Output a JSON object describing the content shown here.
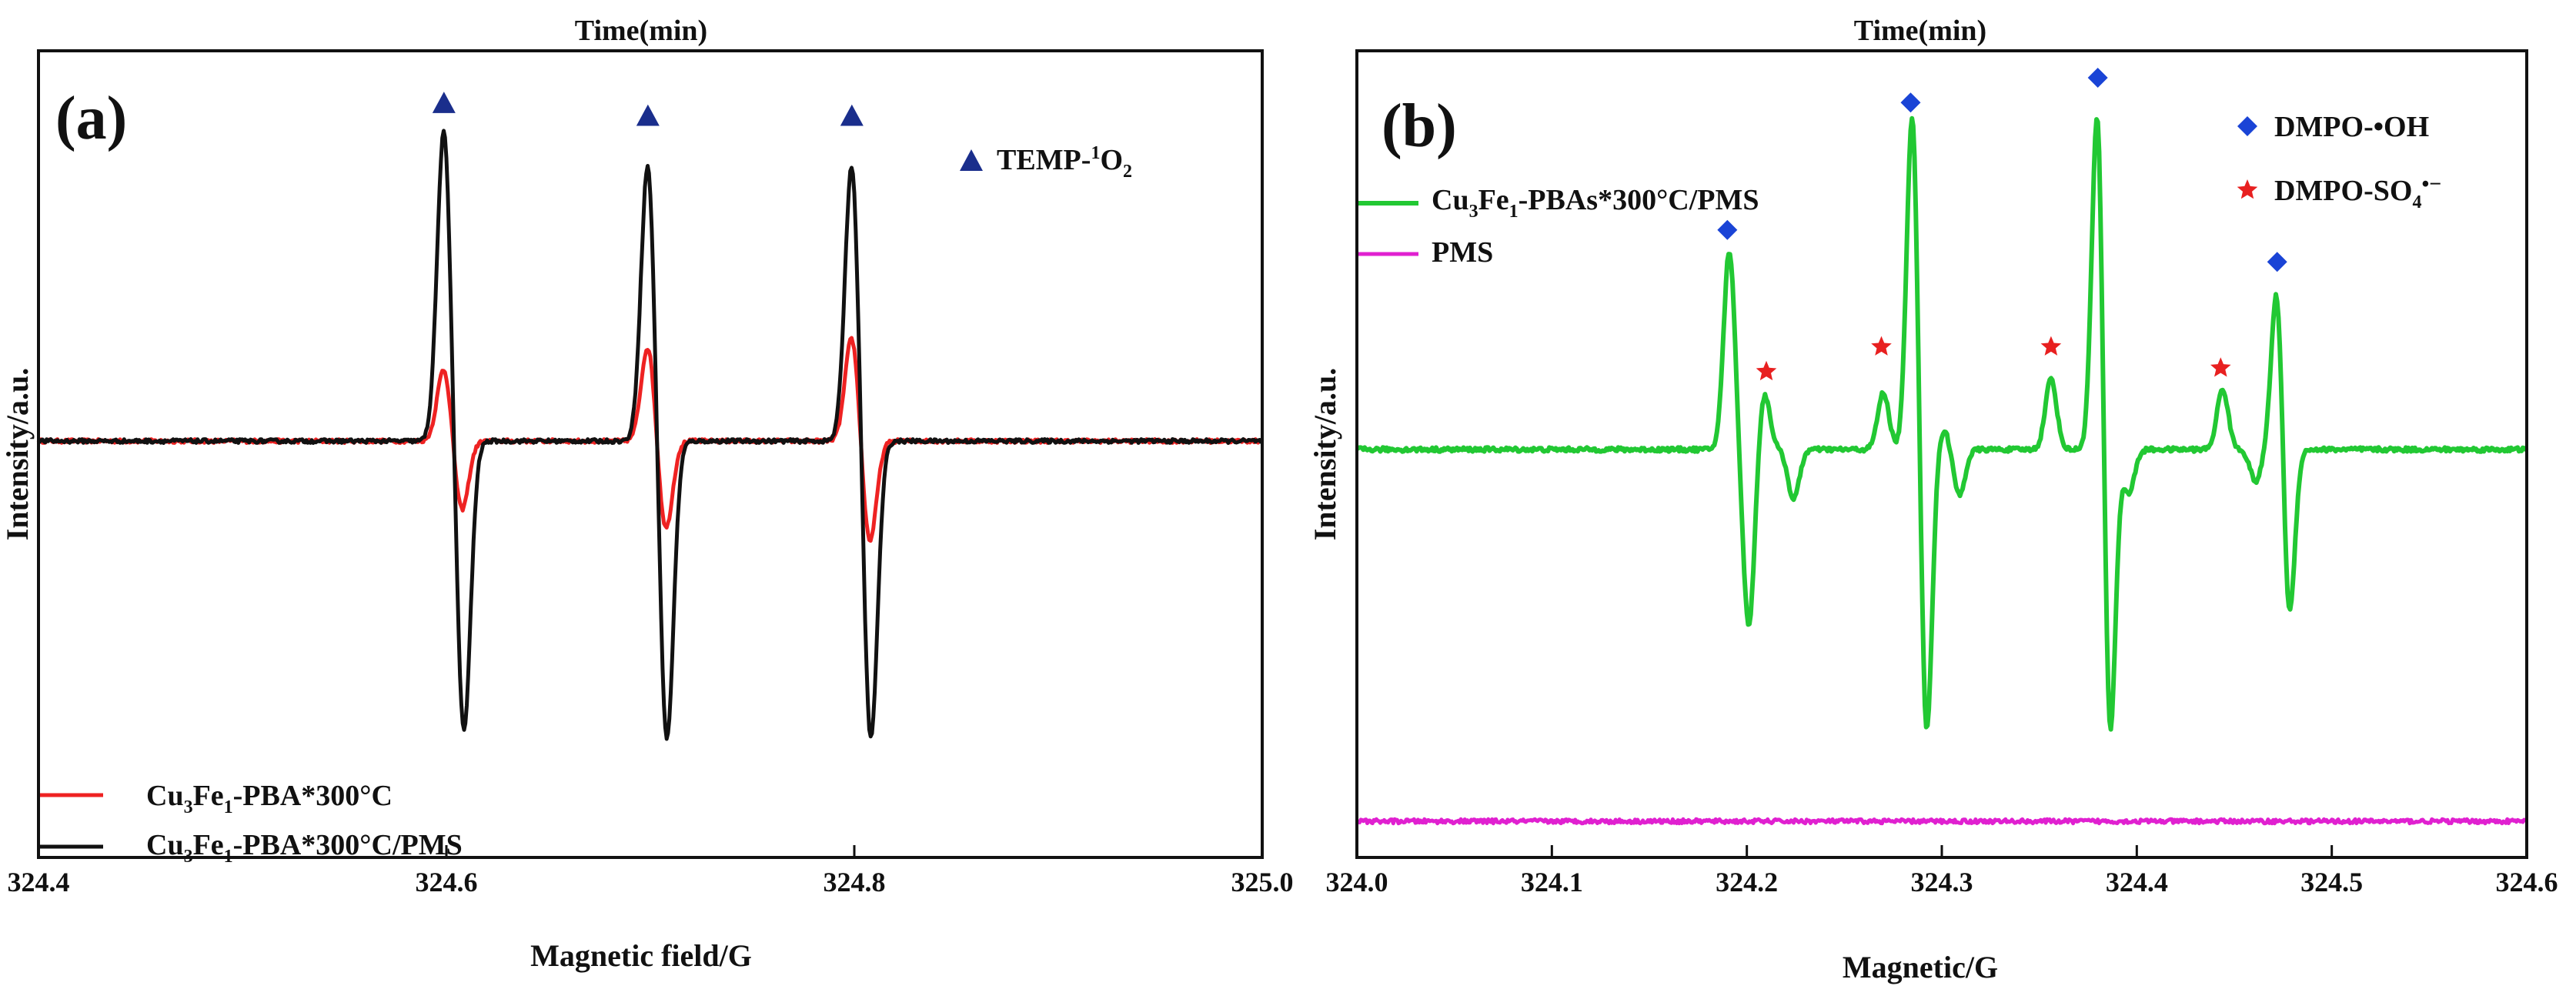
{
  "chart_data": [
    {
      "panel": "(a)",
      "type": "line",
      "top_label": "Time(min)",
      "xlabel": "Magnetic field/G",
      "ylabel": "Intensity/a.u.",
      "xlim": [
        324.4,
        325.0
      ],
      "ylim": [
        -1.0,
        1.0
      ],
      "x_ticks": [
        "324.4",
        "324.6",
        "324.8",
        "325.0"
      ],
      "baseline": 0,
      "series": [
        {
          "name": "Cu3Fe1-PBA*300°C",
          "name_parts": [
            "Cu",
            "3",
            "Fe",
            "1",
            "-PBA*300°C"
          ],
          "color": "#ee2222",
          "peaks": [
            {
              "x": 324.5988,
              "a": 0.23
            },
            {
              "x": 324.6075,
              "a": -0.22
            },
            {
              "x": 324.6988,
              "a": 0.3
            },
            {
              "x": 324.7075,
              "a": -0.28
            },
            {
              "x": 324.7988,
              "a": 0.33
            },
            {
              "x": 324.8075,
              "a": -0.32
            }
          ]
        },
        {
          "name": "Cu3Fe1-PBA*300°C/PMS",
          "name_parts": [
            "Cu",
            "3",
            "Fe",
            "1",
            "-PBA*300°C/PMS"
          ],
          "color": "#111111",
          "peaks": [
            {
              "x": 324.5988,
              "a": 0.98
            },
            {
              "x": 324.6085,
              "a": -0.92
            },
            {
              "x": 324.6988,
              "a": 0.88
            },
            {
              "x": 324.708,
              "a": -0.95
            },
            {
              "x": 324.7988,
              "a": 0.88
            },
            {
              "x": 324.808,
              "a": -0.95
            }
          ]
        }
      ],
      "markers": {
        "symbol": "triangle",
        "color": "#1a2e8c",
        "name": "TEMP-1O2",
        "name_parts": [
          "TEMP-",
          "1",
          "O",
          "2"
        ],
        "positions": [
          {
            "x": 324.5988,
            "y": 1.06
          },
          {
            "x": 324.6988,
            "y": 1.02
          },
          {
            "x": 324.7988,
            "y": 1.02
          }
        ]
      }
    },
    {
      "panel": "(b)",
      "type": "line",
      "top_label": "Time(min)",
      "xlabel": "Magnetic/G",
      "ylabel": "Intensity/a.u.",
      "xlim": [
        324.0,
        324.6
      ],
      "ylim": [
        -1.0,
        1.0
      ],
      "x_ticks": [
        "324.0",
        "324.1",
        "324.2",
        "324.3",
        "324.4",
        "324.5",
        "324.6"
      ],
      "baseline": 0,
      "series": [
        {
          "name": "Cu3Fe1-PBAs*300°C/PMS",
          "name_parts": [
            "Cu",
            "3",
            "Fe",
            "1",
            "-PBAs*300°C/PMS"
          ],
          "color": "#22c833",
          "baseline": 0,
          "peaks": [
            {
              "x": 324.191,
              "a": 0.56
            },
            {
              "x": 324.201,
              "a": -0.5
            },
            {
              "x": 324.209,
              "a": 0.16
            },
            {
              "x": 324.224,
              "a": -0.14
            },
            {
              "x": 324.27,
              "a": 0.16
            },
            {
              "x": 324.285,
              "a": 0.98
            },
            {
              "x": 324.292,
              "a": -0.83
            },
            {
              "x": 324.301,
              "a": 0.06
            },
            {
              "x": 324.309,
              "a": -0.13
            },
            {
              "x": 324.356,
              "a": 0.2
            },
            {
              "x": 324.38,
              "a": 1.02
            },
            {
              "x": 324.386,
              "a": -0.88
            },
            {
              "x": 324.396,
              "a": -0.12
            },
            {
              "x": 324.444,
              "a": 0.17
            },
            {
              "x": 324.461,
              "a": -0.09
            },
            {
              "x": 324.472,
              "a": 0.48
            },
            {
              "x": 324.478,
              "a": -0.5
            }
          ]
        },
        {
          "name": "PMS",
          "name_parts": [
            "PMS"
          ],
          "color": "#e020d0",
          "baseline": -1.05,
          "peaks": []
        }
      ],
      "markers": [
        {
          "symbol": "diamond",
          "color": "#1a44d6",
          "name": "DMPO-•OH",
          "name_parts": [
            "DMPO-•OH"
          ],
          "positions": [
            {
              "x": 324.19,
              "y": 0.62
            },
            {
              "x": 324.284,
              "y": 0.98
            },
            {
              "x": 324.38,
              "y": 1.05
            },
            {
              "x": 324.472,
              "y": 0.53
            }
          ]
        },
        {
          "symbol": "star",
          "color": "#e82020",
          "name": "DMPO-SO4•−",
          "name_parts": [
            "DMPO-SO",
            "4",
            "•−"
          ],
          "positions": [
            {
              "x": 324.21,
              "y": 0.22
            },
            {
              "x": 324.269,
              "y": 0.29
            },
            {
              "x": 324.356,
              "y": 0.29
            },
            {
              "x": 324.443,
              "y": 0.23
            }
          ]
        }
      ]
    }
  ]
}
